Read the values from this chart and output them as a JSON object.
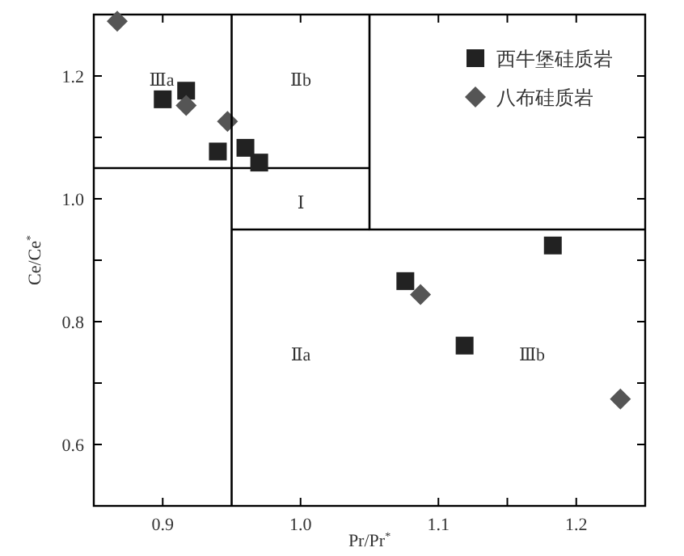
{
  "chart_data": {
    "type": "scatter",
    "xlabel": "Pr/Pr$^{*}$",
    "ylabel": "Ce/Ce$^{*}$",
    "xlim": [
      0.85,
      1.25
    ],
    "ylim": [
      0.5,
      1.3
    ],
    "xticks": [
      {
        "value": 0.9,
        "label": "0.9"
      },
      {
        "value": 1.0,
        "label": "1.0"
      },
      {
        "value": 1.1,
        "label": "1.1"
      },
      {
        "value": 1.15,
        "label": null
      },
      {
        "value": 1.2,
        "label": "1.2"
      }
    ],
    "yticks": [
      {
        "value": 0.6,
        "label": "0.6"
      },
      {
        "value": 0.7,
        "label": null
      },
      {
        "value": 0.8,
        "label": "0.8"
      },
      {
        "value": 0.9,
        "label": null
      },
      {
        "value": 1.0,
        "label": "1.0"
      },
      {
        "value": 1.1,
        "label": null
      },
      {
        "value": 1.2,
        "label": "1.2"
      }
    ],
    "legend": "top right",
    "series": [
      {
        "name": "西牛堡硅质岩",
        "marker": "square",
        "color": "#222222",
        "x": [
          0.9,
          0.917,
          0.94,
          0.96,
          0.97,
          1.183,
          1.076,
          1.119
        ],
        "values": [
          1.162,
          1.176,
          1.077,
          1.083,
          1.059,
          0.924,
          0.866,
          0.761
        ]
      },
      {
        "name": "八布硅质岩",
        "marker": "diamond",
        "color": "#555555",
        "x": [
          0.867,
          0.917,
          0.947,
          1.087,
          1.232
        ],
        "values": [
          1.289,
          1.152,
          1.126,
          0.844,
          0.674
        ]
      },
      {
        "type": "line",
        "marker": "none",
        "color": "#000000",
        "x": [
          0.85,
          1.05
        ],
        "values": [
          1.05,
          1.05
        ]
      },
      {
        "type": "line",
        "marker": "none",
        "color": "#000000",
        "x": [
          0.95,
          1.05
        ],
        "values": [
          0.95,
          0.95
        ]
      },
      {
        "type": "line",
        "marker": "none",
        "color": "#000000",
        "x": [
          1.05,
          1.05,
          1.25
        ],
        "values": [
          1.3,
          0.95,
          0.95
        ]
      }
    ],
    "ref_lines": [
      {
        "axis": "x",
        "value": 0.95,
        "color": "#000000"
      }
    ],
    "annotations": [
      "Ⅲa",
      "Ⅱb",
      "Ⅰ",
      "Ⅱa",
      "Ⅲb"
    ]
  }
}
